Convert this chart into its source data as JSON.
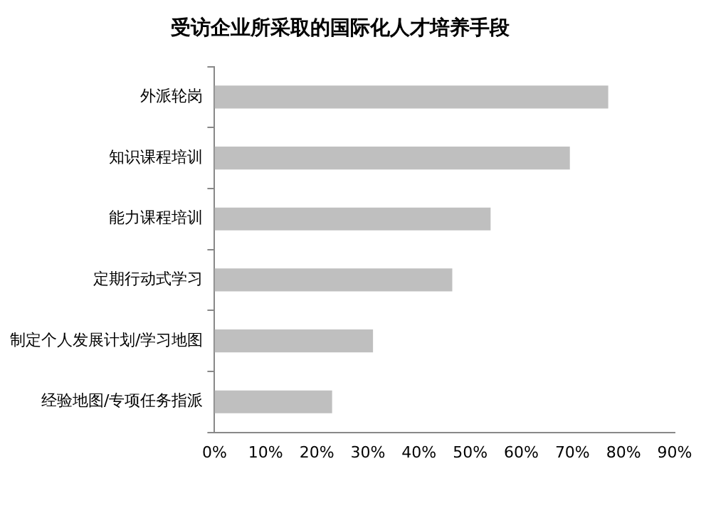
{
  "chart_data": {
    "type": "bar",
    "orientation": "horizontal",
    "title": "受访企业所采取的国际化人才培养手段",
    "categories": [
      "外派轮岗",
      "知识课程培训",
      "能力课程培训",
      "定期行动式学习",
      "制定个人发展计划/学习地图",
      "经验地图/专项任务指派"
    ],
    "values": [
      77,
      69.5,
      54,
      46.5,
      31,
      23
    ],
    "color": "#bfbfbf",
    "xlim": [
      0,
      90
    ],
    "xticks": [
      {
        "value": 0,
        "label": "0%"
      },
      {
        "value": 10,
        "label": "10%"
      },
      {
        "value": 20,
        "label": "20%"
      },
      {
        "value": 30,
        "label": "30%"
      },
      {
        "value": 40,
        "label": "40%"
      },
      {
        "value": 50,
        "label": "50%"
      },
      {
        "value": 60,
        "label": "60%"
      },
      {
        "value": 70,
        "label": "70%"
      },
      {
        "value": 80,
        "label": "80%"
      },
      {
        "value": 90,
        "label": "90%"
      }
    ],
    "grid": false,
    "legend": false
  }
}
